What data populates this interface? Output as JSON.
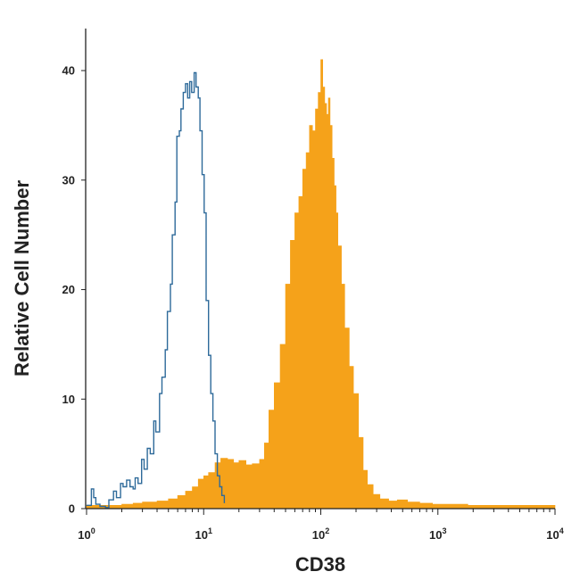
{
  "chart_data": {
    "type": "area",
    "xscale": "log",
    "xlim": [
      1,
      10000
    ],
    "ylim": [
      0,
      44
    ],
    "xlabel": "CD38",
    "ylabel": "Relative Cell Number",
    "xticks": [
      {
        "value": 1,
        "base": "10",
        "exp": "0"
      },
      {
        "value": 10,
        "base": "10",
        "exp": "1"
      },
      {
        "value": 100,
        "base": "10",
        "exp": "2"
      },
      {
        "value": 1000,
        "base": "10",
        "exp": "3"
      },
      {
        "value": 10000,
        "base": "10",
        "exp": "4"
      }
    ],
    "yticks": [
      {
        "value": 0,
        "label": "0"
      },
      {
        "value": 10,
        "label": "10"
      },
      {
        "value": 20,
        "label": "20"
      },
      {
        "value": 30,
        "label": "30"
      },
      {
        "value": 40,
        "label": "40"
      }
    ],
    "grid": false,
    "legend": "none",
    "series": [
      {
        "style": "outline",
        "color": "#2e6a9a",
        "x": [
          1.0,
          1.1,
          1.15,
          1.2,
          1.3,
          1.45,
          1.55,
          1.7,
          1.8,
          1.95,
          2.05,
          2.2,
          2.35,
          2.5,
          2.6,
          2.75,
          2.95,
          3.1,
          3.3,
          3.5,
          3.75,
          3.9,
          4.2,
          4.4,
          4.7,
          4.9,
          5.2,
          5.4,
          5.7,
          5.9,
          6.2,
          6.4,
          6.7,
          7.0,
          7.3,
          7.6,
          7.9,
          8.3,
          8.6,
          9.0,
          9.3,
          9.7,
          10.1,
          10.5,
          11.0,
          11.5,
          12.0,
          12.5,
          13.1,
          13.7,
          14.3,
          15.0
        ],
        "y": [
          0.3,
          1.8,
          1.0,
          0.4,
          0.2,
          0.1,
          0.8,
          1.6,
          1.0,
          2.3,
          2.0,
          2.6,
          2.0,
          1.8,
          2.8,
          2.3,
          4.5,
          3.6,
          5.5,
          5.0,
          8.0,
          7.0,
          10.5,
          12.0,
          14.5,
          18.0,
          20.5,
          25.0,
          28.0,
          34.0,
          34.5,
          36.5,
          38.0,
          38.8,
          37.5,
          39.0,
          38.0,
          39.8,
          38.5,
          37.5,
          34.5,
          30.5,
          27.0,
          19.0,
          14.0,
          10.5,
          8.0,
          5.0,
          3.0,
          2.0,
          1.2,
          0.5
        ]
      },
      {
        "style": "filled",
        "color": "#f5a21a",
        "x": [
          1.0,
          1.5,
          2.0,
          2.5,
          3.0,
          4.0,
          5.0,
          6.0,
          7.0,
          8.0,
          9.0,
          10.0,
          11.0,
          12.5,
          14.0,
          16.0,
          18.0,
          20.0,
          23.0,
          26.0,
          30.0,
          33.0,
          36.0,
          40.0,
          45.0,
          50.0,
          55.0,
          60.0,
          65.0,
          70.0,
          75.0,
          80.0,
          85.0,
          90.0,
          95.0,
          100.0,
          104.0,
          108.0,
          112.0,
          116.0,
          120.0,
          125.0,
          130.0,
          135.0,
          140.0,
          150.0,
          160.0,
          175.0,
          190.0,
          210.0,
          230.0,
          250.0,
          280.0,
          320.0,
          380.0,
          450.0,
          550.0,
          700.0,
          900.0,
          1100.0,
          1300.0,
          1800.0,
          3000.0,
          10000.0
        ],
        "y": [
          0.3,
          0.3,
          0.4,
          0.5,
          0.6,
          0.7,
          0.9,
          1.2,
          1.6,
          2.0,
          2.7,
          3.0,
          3.3,
          4.2,
          4.6,
          4.5,
          4.2,
          4.4,
          4.0,
          4.1,
          4.5,
          6.0,
          9.0,
          11.5,
          15.0,
          20.5,
          24.5,
          27.0,
          28.5,
          31.0,
          32.5,
          35.0,
          34.5,
          36.5,
          38.0,
          41.0,
          38.5,
          37.0,
          36.0,
          37.5,
          35.0,
          32.0,
          29.5,
          27.0,
          24.0,
          20.5,
          16.5,
          13.0,
          10.5,
          6.5,
          3.5,
          2.2,
          1.3,
          0.9,
          0.7,
          0.8,
          0.6,
          0.5,
          0.4,
          0.4,
          0.4,
          0.3,
          0.3,
          0.3
        ]
      }
    ]
  }
}
